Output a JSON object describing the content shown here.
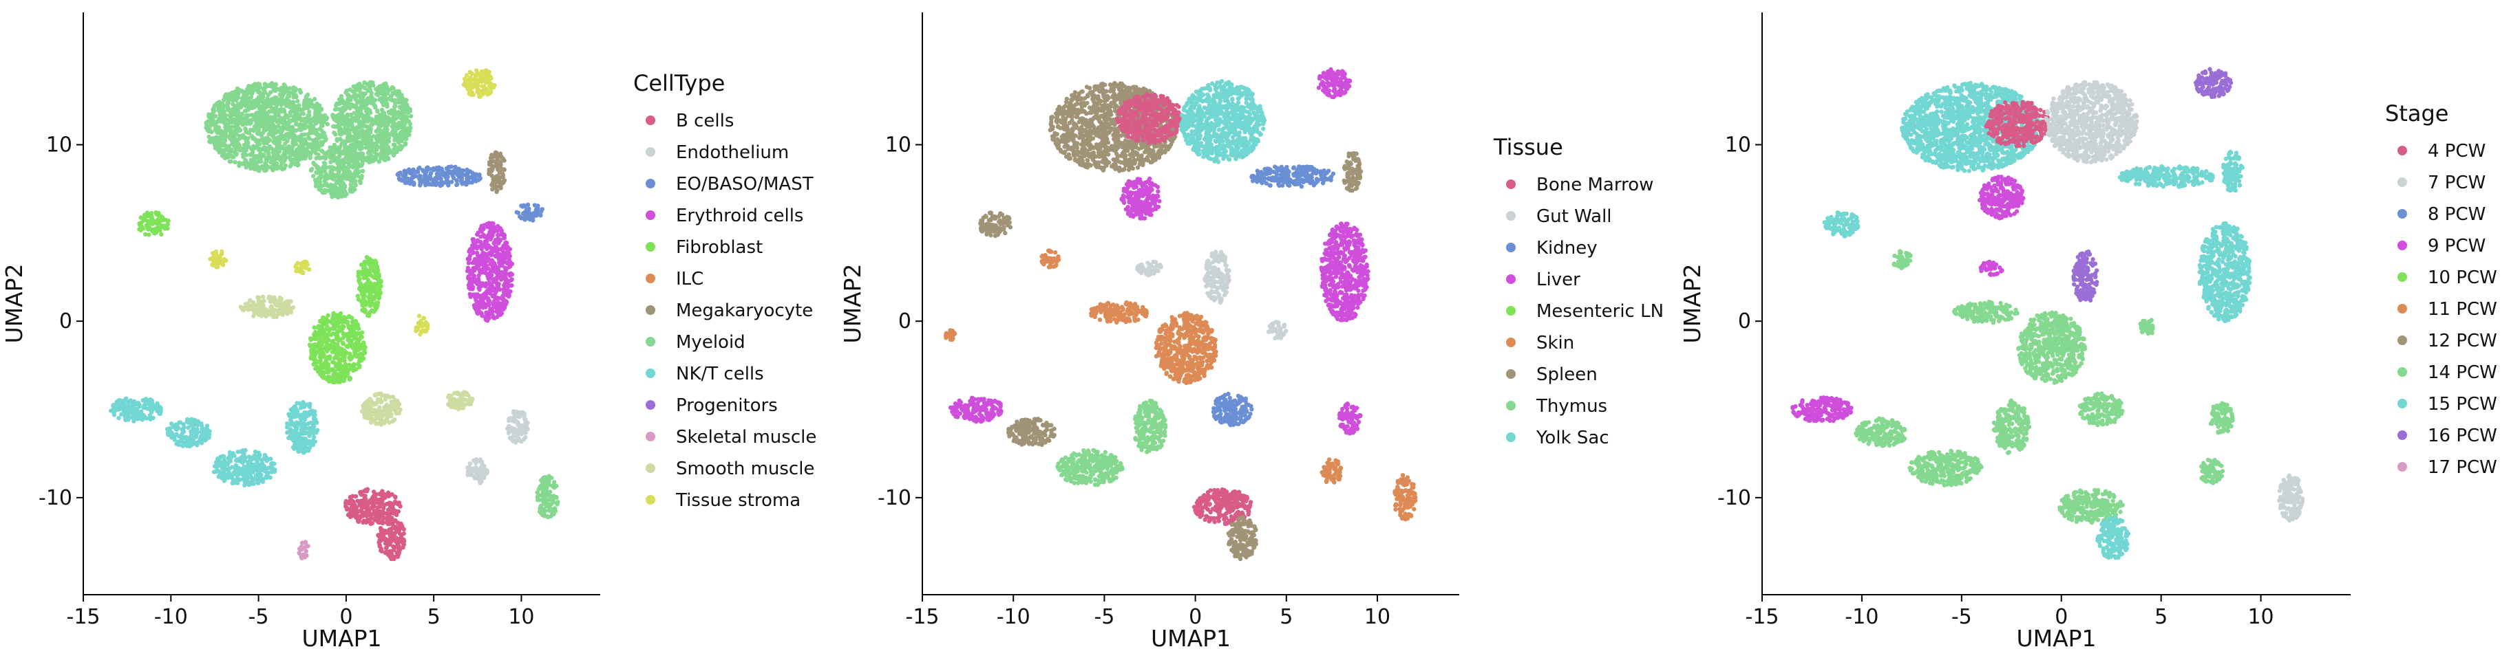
{
  "chart_data": [
    {
      "type": "scatter",
      "xlabel": "UMAP1",
      "ylabel": "UMAP2",
      "xlim": [
        -15,
        14.5
      ],
      "ylim": [
        -15.5,
        17.5
      ],
      "x_ticks": [
        {
          "value": -15,
          "label": "-15"
        },
        {
          "value": -10,
          "label": "-10"
        },
        {
          "value": -5,
          "label": "-5"
        },
        {
          "value": 0,
          "label": "0"
        },
        {
          "value": 5,
          "label": "5"
        },
        {
          "value": 10,
          "label": "10"
        }
      ],
      "y_ticks": [
        {
          "value": -10,
          "label": "-10"
        },
        {
          "value": 0,
          "label": "0"
        },
        {
          "value": 10,
          "label": "10"
        }
      ],
      "legend": {
        "title": "CellType",
        "entries": [
          {
            "label": "B cells",
            "color": "#d95b87"
          },
          {
            "label": "Endothelium",
            "color": "#c9d3d6"
          },
          {
            "label": "EO/BASO/MAST",
            "color": "#6b8fd4"
          },
          {
            "label": "Erythroid cells",
            "color": "#cf4edb"
          },
          {
            "label": "Fibroblast",
            "color": "#7fe35a"
          },
          {
            "label": "ILC",
            "color": "#dd8a55"
          },
          {
            "label": "Megakaryocyte",
            "color": "#a09376"
          },
          {
            "label": "Myeloid",
            "color": "#84d88f"
          },
          {
            "label": "NK/T cells",
            "color": "#72d7d2"
          },
          {
            "label": "Progenitors",
            "color": "#9b6ed6"
          },
          {
            "label": "Skeletal muscle",
            "color": "#d99bc5"
          },
          {
            "label": "Smooth muscle",
            "color": "#cedba2"
          },
          {
            "label": "Tissue stroma",
            "color": "#d9de59"
          }
        ]
      },
      "clusters": [
        {
          "cx": -4.5,
          "cy": 11,
          "rx": 3.5,
          "ry": 2.5,
          "color": "#84d88f"
        },
        {
          "cx": 1.5,
          "cy": 11.3,
          "rx": 2.3,
          "ry": 2.3,
          "color": "#84d88f"
        },
        {
          "cx": -0.5,
          "cy": 8.5,
          "rx": 1.5,
          "ry": 1.5,
          "color": "#84d88f"
        },
        {
          "cx": 5.3,
          "cy": 8.2,
          "rx": 2.4,
          "ry": 0.6,
          "color": "#6b8fd4"
        },
        {
          "cx": 8.2,
          "cy": 2.8,
          "rx": 1.3,
          "ry": 2.8,
          "color": "#cf4edb"
        },
        {
          "cx": 7.6,
          "cy": 13.5,
          "rx": 0.9,
          "ry": 0.8,
          "color": "#d9de59"
        },
        {
          "cx": 8.6,
          "cy": 8.5,
          "rx": 0.5,
          "ry": 1.2,
          "color": "#a09376"
        },
        {
          "cx": 10.5,
          "cy": 6.2,
          "rx": 0.8,
          "ry": 0.5,
          "color": "#6b8fd4"
        },
        {
          "cx": -11,
          "cy": 5.5,
          "rx": 0.9,
          "ry": 0.7,
          "color": "#7fe35a"
        },
        {
          "cx": -7.3,
          "cy": 3.5,
          "rx": 0.5,
          "ry": 0.5,
          "color": "#d9de59"
        },
        {
          "cx": -2.5,
          "cy": 3,
          "rx": 0.5,
          "ry": 0.4,
          "color": "#d9de59"
        },
        {
          "cx": -4.5,
          "cy": 0.8,
          "rx": 1.6,
          "ry": 0.6,
          "color": "#cedba2"
        },
        {
          "cx": -0.5,
          "cy": -1.5,
          "rx": 1.6,
          "ry": 2,
          "color": "#7fe35a"
        },
        {
          "cx": 1.3,
          "cy": 2,
          "rx": 0.7,
          "ry": 1.7,
          "color": "#7fe35a"
        },
        {
          "cx": 4.3,
          "cy": -0.2,
          "rx": 0.4,
          "ry": 0.6,
          "color": "#d9de59"
        },
        {
          "cx": 2,
          "cy": -5,
          "rx": 1.1,
          "ry": 0.9,
          "color": "#cedba2"
        },
        {
          "cx": 6.5,
          "cy": -4.5,
          "rx": 0.8,
          "ry": 0.5,
          "color": "#cedba2"
        },
        {
          "cx": 9.8,
          "cy": -6,
          "rx": 0.6,
          "ry": 1,
          "color": "#c9d3d6"
        },
        {
          "cx": 7.5,
          "cy": -8.5,
          "rx": 0.6,
          "ry": 0.7,
          "color": "#c9d3d6"
        },
        {
          "cx": -12,
          "cy": -5,
          "rx": 1.5,
          "ry": 0.7,
          "color": "#72d7d2"
        },
        {
          "cx": -9,
          "cy": -6.3,
          "rx": 1.3,
          "ry": 0.8,
          "color": "#72d7d2"
        },
        {
          "cx": -5.8,
          "cy": -8.3,
          "rx": 1.8,
          "ry": 1,
          "color": "#72d7d2"
        },
        {
          "cx": -2.5,
          "cy": -6,
          "rx": 0.9,
          "ry": 1.5,
          "color": "#72d7d2"
        },
        {
          "cx": 1.5,
          "cy": -10.5,
          "rx": 1.6,
          "ry": 1,
          "color": "#d95b87"
        },
        {
          "cx": 2.6,
          "cy": -12.3,
          "rx": 0.8,
          "ry": 1.2,
          "color": "#d95b87"
        },
        {
          "cx": 11.5,
          "cy": -10,
          "rx": 0.6,
          "ry": 1.3,
          "color": "#84d88f"
        },
        {
          "cx": -2.4,
          "cy": -13,
          "rx": 0.3,
          "ry": 0.5,
          "color": "#d99bc5"
        }
      ]
    },
    {
      "type": "scatter",
      "xlabel": "UMAP1",
      "ylabel": "UMAP2",
      "xlim": [
        -15,
        14.5
      ],
      "ylim": [
        -15.5,
        17.5
      ],
      "x_ticks": [
        {
          "value": -15,
          "label": "-15"
        },
        {
          "value": -10,
          "label": "-10"
        },
        {
          "value": -5,
          "label": "-5"
        },
        {
          "value": 0,
          "label": "0"
        },
        {
          "value": 5,
          "label": "5"
        },
        {
          "value": 10,
          "label": "10"
        }
      ],
      "y_ticks": [
        {
          "value": -10,
          "label": "-10"
        },
        {
          "value": 0,
          "label": "0"
        },
        {
          "value": 10,
          "label": "10"
        }
      ],
      "legend": {
        "title": "Tissue",
        "entries": [
          {
            "label": "Bone Marrow",
            "color": "#d95b87"
          },
          {
            "label": "Gut Wall",
            "color": "#c9d3d6"
          },
          {
            "label": "Kidney",
            "color": "#6b8fd4"
          },
          {
            "label": "Liver",
            "color": "#cf4edb"
          },
          {
            "label": "Mesenteric LN",
            "color": "#7fe35a"
          },
          {
            "label": "Skin",
            "color": "#dd8a55"
          },
          {
            "label": "Spleen",
            "color": "#a09376"
          },
          {
            "label": "Thymus",
            "color": "#84d88f"
          },
          {
            "label": "Yolk Sac",
            "color": "#72d7d2"
          }
        ]
      },
      "clusters": [
        {
          "cx": -4.5,
          "cy": 11,
          "rx": 3.5,
          "ry": 2.5,
          "color": "#a09376"
        },
        {
          "cx": -2.5,
          "cy": 11.5,
          "rx": 1.8,
          "ry": 1.4,
          "color": "#d95b87"
        },
        {
          "cx": 1.5,
          "cy": 11.3,
          "rx": 2.3,
          "ry": 2.3,
          "color": "#72d7d2"
        },
        {
          "cx": -3,
          "cy": 7,
          "rx": 1.1,
          "ry": 1.2,
          "color": "#cf4edb"
        },
        {
          "cx": 5.3,
          "cy": 8.2,
          "rx": 2.4,
          "ry": 0.6,
          "color": "#6b8fd4"
        },
        {
          "cx": 8.2,
          "cy": 2.8,
          "rx": 1.3,
          "ry": 2.8,
          "color": "#cf4edb"
        },
        {
          "cx": 7.6,
          "cy": 13.5,
          "rx": 0.9,
          "ry": 0.8,
          "color": "#cf4edb"
        },
        {
          "cx": 8.6,
          "cy": 8.5,
          "rx": 0.5,
          "ry": 1.2,
          "color": "#a09376"
        },
        {
          "cx": -11,
          "cy": 5.5,
          "rx": 0.9,
          "ry": 0.7,
          "color": "#a09376"
        },
        {
          "cx": -8,
          "cy": 3.5,
          "rx": 0.5,
          "ry": 0.5,
          "color": "#dd8a55"
        },
        {
          "cx": -2.5,
          "cy": 3,
          "rx": 0.7,
          "ry": 0.4,
          "color": "#c9d3d6"
        },
        {
          "cx": 1.2,
          "cy": 2.5,
          "rx": 0.7,
          "ry": 1.5,
          "color": "#c9d3d6"
        },
        {
          "cx": -4.2,
          "cy": 0.5,
          "rx": 1.6,
          "ry": 0.6,
          "color": "#dd8a55"
        },
        {
          "cx": -0.5,
          "cy": -1.5,
          "rx": 1.7,
          "ry": 2,
          "color": "#dd8a55"
        },
        {
          "cx": 4.5,
          "cy": -0.5,
          "rx": 0.5,
          "ry": 0.5,
          "color": "#c9d3d6"
        },
        {
          "cx": 2,
          "cy": -5,
          "rx": 1.1,
          "ry": 0.9,
          "color": "#6b8fd4"
        },
        {
          "cx": 8.5,
          "cy": -5.5,
          "rx": 0.6,
          "ry": 0.9,
          "color": "#cf4edb"
        },
        {
          "cx": 7.5,
          "cy": -8.5,
          "rx": 0.6,
          "ry": 0.7,
          "color": "#dd8a55"
        },
        {
          "cx": -12,
          "cy": -5,
          "rx": 1.5,
          "ry": 0.7,
          "color": "#cf4edb"
        },
        {
          "cx": -9,
          "cy": -6.3,
          "rx": 1.3,
          "ry": 0.8,
          "color": "#a09376"
        },
        {
          "cx": -5.8,
          "cy": -8.3,
          "rx": 1.8,
          "ry": 1,
          "color": "#84d88f"
        },
        {
          "cx": -2.5,
          "cy": -6,
          "rx": 0.9,
          "ry": 1.5,
          "color": "#84d88f"
        },
        {
          "cx": 1.5,
          "cy": -10.5,
          "rx": 1.6,
          "ry": 1,
          "color": "#d95b87"
        },
        {
          "cx": 2.6,
          "cy": -12.3,
          "rx": 0.8,
          "ry": 1.2,
          "color": "#a09376"
        },
        {
          "cx": 11.5,
          "cy": -10,
          "rx": 0.6,
          "ry": 1.3,
          "color": "#dd8a55"
        },
        {
          "cx": -13.5,
          "cy": -0.8,
          "rx": 0.3,
          "ry": 0.3,
          "color": "#dd8a55"
        }
      ]
    },
    {
      "type": "scatter",
      "xlabel": "UMAP1",
      "ylabel": "UMAP2",
      "xlim": [
        -15,
        14.5
      ],
      "ylim": [
        -15.5,
        17.5
      ],
      "x_ticks": [
        {
          "value": -15,
          "label": "-15"
        },
        {
          "value": -10,
          "label": "-10"
        },
        {
          "value": -5,
          "label": "-5"
        },
        {
          "value": 0,
          "label": "0"
        },
        {
          "value": 5,
          "label": "5"
        },
        {
          "value": 10,
          "label": "10"
        }
      ],
      "y_ticks": [
        {
          "value": -10,
          "label": "-10"
        },
        {
          "value": 0,
          "label": "0"
        },
        {
          "value": 10,
          "label": "10"
        }
      ],
      "legend": {
        "title": "Stage",
        "entries": [
          {
            "label": "4 PCW",
            "color": "#d95b87"
          },
          {
            "label": "7 PCW",
            "color": "#c9d3d6"
          },
          {
            "label": "8 PCW",
            "color": "#6b8fd4"
          },
          {
            "label": "9 PCW",
            "color": "#cf4edb"
          },
          {
            "label": "10 PCW",
            "color": "#7fe35a"
          },
          {
            "label": "11 PCW",
            "color": "#dd8a55"
          },
          {
            "label": "12 PCW",
            "color": "#a09376"
          },
          {
            "label": "14 PCW",
            "color": "#84d88f"
          },
          {
            "label": "15 PCW",
            "color": "#72d7d2"
          },
          {
            "label": "16 PCW",
            "color": "#9b6ed6"
          },
          {
            "label": "17 PCW",
            "color": "#d99bc5"
          }
        ]
      },
      "clusters": [
        {
          "cx": -4.5,
          "cy": 11,
          "rx": 3.5,
          "ry": 2.5,
          "color": "#72d7d2"
        },
        {
          "cx": -2.2,
          "cy": 11.2,
          "rx": 1.6,
          "ry": 1.3,
          "color": "#d95b87"
        },
        {
          "cx": 1.5,
          "cy": 11.3,
          "rx": 2.3,
          "ry": 2.3,
          "color": "#c9d3d6"
        },
        {
          "cx": -3,
          "cy": 7,
          "rx": 1.1,
          "ry": 1.2,
          "color": "#cf4edb"
        },
        {
          "cx": 5.3,
          "cy": 8.2,
          "rx": 2.4,
          "ry": 0.6,
          "color": "#72d7d2"
        },
        {
          "cx": 8.2,
          "cy": 2.8,
          "rx": 1.3,
          "ry": 2.8,
          "color": "#72d7d2"
        },
        {
          "cx": 7.6,
          "cy": 13.5,
          "rx": 0.9,
          "ry": 0.8,
          "color": "#9b6ed6"
        },
        {
          "cx": 8.6,
          "cy": 8.5,
          "rx": 0.5,
          "ry": 1.2,
          "color": "#72d7d2"
        },
        {
          "cx": -11,
          "cy": 5.5,
          "rx": 0.9,
          "ry": 0.7,
          "color": "#72d7d2"
        },
        {
          "cx": -8,
          "cy": 3.5,
          "rx": 0.5,
          "ry": 0.5,
          "color": "#84d88f"
        },
        {
          "cx": -3.5,
          "cy": 3,
          "rx": 0.6,
          "ry": 0.4,
          "color": "#cf4edb"
        },
        {
          "cx": 1.2,
          "cy": 2.5,
          "rx": 0.6,
          "ry": 1.5,
          "color": "#9b6ed6"
        },
        {
          "cx": -3.8,
          "cy": 0.5,
          "rx": 1.6,
          "ry": 0.6,
          "color": "#84d88f"
        },
        {
          "cx": -0.5,
          "cy": -1.5,
          "rx": 1.7,
          "ry": 2,
          "color": "#84d88f"
        },
        {
          "cx": 4.3,
          "cy": -0.3,
          "rx": 0.4,
          "ry": 0.5,
          "color": "#84d88f"
        },
        {
          "cx": 2,
          "cy": -5,
          "rx": 1.1,
          "ry": 0.9,
          "color": "#84d88f"
        },
        {
          "cx": 8,
          "cy": -5.5,
          "rx": 0.6,
          "ry": 0.9,
          "color": "#84d88f"
        },
        {
          "cx": 7.5,
          "cy": -8.5,
          "rx": 0.6,
          "ry": 0.7,
          "color": "#84d88f"
        },
        {
          "cx": -12,
          "cy": -5,
          "rx": 1.5,
          "ry": 0.7,
          "color": "#cf4edb"
        },
        {
          "cx": -9,
          "cy": -6.3,
          "rx": 1.3,
          "ry": 0.8,
          "color": "#84d88f"
        },
        {
          "cx": -5.8,
          "cy": -8.3,
          "rx": 1.8,
          "ry": 1,
          "color": "#84d88f"
        },
        {
          "cx": -2.5,
          "cy": -6,
          "rx": 0.9,
          "ry": 1.5,
          "color": "#84d88f"
        },
        {
          "cx": 1.5,
          "cy": -10.5,
          "rx": 1.6,
          "ry": 1,
          "color": "#84d88f"
        },
        {
          "cx": 2.6,
          "cy": -12.3,
          "rx": 0.8,
          "ry": 1.2,
          "color": "#72d7d2"
        },
        {
          "cx": 11.5,
          "cy": -10,
          "rx": 0.6,
          "ry": 1.3,
          "color": "#c9d3d6"
        }
      ]
    }
  ]
}
